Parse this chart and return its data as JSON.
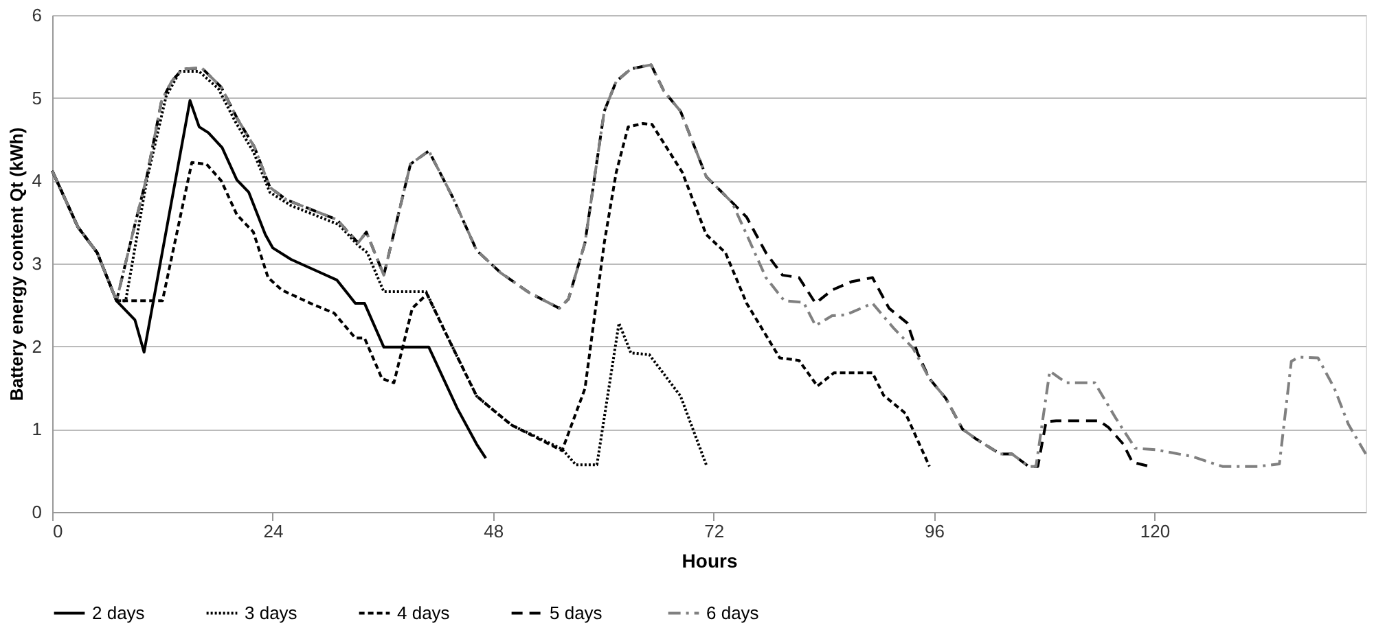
{
  "chart_data": {
    "type": "line",
    "xlabel": "Hours",
    "ylabel": "Battery energy content Qt (kWh)",
    "xlim": [
      0,
      143
    ],
    "xticks": [
      0,
      24,
      48,
      72,
      96,
      120
    ],
    "ylim": [
      0,
      6
    ],
    "yticks": [
      0,
      1,
      2,
      3,
      4,
      5,
      6
    ],
    "grid": "y",
    "legend": "bottom",
    "marker": "none",
    "series": [
      {
        "name": "2 days",
        "color": "#000000",
        "line_style": "solid",
        "x": [
          0,
          2.8,
          4.9,
          7,
          9,
          10,
          15,
          16,
          17,
          18.5,
          20.1,
          21.4,
          23.2,
          24,
          26,
          29.2,
          31,
          33,
          34,
          36.1,
          41,
          44.1,
          46.2,
          47.2
        ],
        "values": [
          4.12,
          3.44,
          3.13,
          2.55,
          2.32,
          1.93,
          4.97,
          4.65,
          4.58,
          4.4,
          4.01,
          3.86,
          3.35,
          3.19,
          3.05,
          2.89,
          2.8,
          2.52,
          2.52,
          1.99,
          1.99,
          1.25,
          0.82,
          0.65
        ]
      },
      {
        "name": "3 days",
        "color": "#000000",
        "line_style": "dotted",
        "x": [
          0,
          2.8,
          4.9,
          7,
          8,
          10.3,
          12.4,
          13.9,
          16,
          18.1,
          19.9,
          21.9,
          23.7,
          26,
          31.2,
          33.3,
          34.3,
          36.1,
          40.7,
          43.1,
          46.2,
          47.8,
          50,
          55.5,
          57,
          59.3,
          61.7,
          63,
          65,
          68.4,
          71.2
        ],
        "values": [
          4.12,
          3.44,
          3.13,
          2.55,
          2.55,
          4.01,
          5.02,
          5.32,
          5.32,
          5.11,
          4.72,
          4.35,
          3.86,
          3.7,
          3.47,
          3.22,
          3.13,
          2.66,
          2.66,
          2.1,
          1.4,
          1.25,
          1.05,
          0.76,
          0.57,
          0.57,
          2.28,
          1.92,
          1.9,
          1.4,
          0.57
        ]
      },
      {
        "name": "4 days",
        "color": "#000000",
        "line_style": "dashed",
        "x": [
          0,
          2.8,
          4.9,
          7,
          12,
          15.2,
          16.8,
          18.4,
          20.1,
          21.9,
          23.5,
          25,
          28.1,
          30.7,
          33,
          34,
          35.9,
          37.2,
          39.2,
          40.8,
          43.1,
          46.2,
          47.8,
          50,
          55.5,
          58,
          60.1,
          61.4,
          62.7,
          64.3,
          65.3,
          68.6,
          71.2,
          73.3,
          75.6,
          79.2,
          81.3,
          83.3,
          85.1,
          89.3,
          90.5,
          92.9,
          95.5
        ],
        "values": [
          4.12,
          3.44,
          3.13,
          2.55,
          2.55,
          4.22,
          4.2,
          4.0,
          3.59,
          3.38,
          2.83,
          2.68,
          2.52,
          2.4,
          2.1,
          2.1,
          1.61,
          1.56,
          2.46,
          2.63,
          2.1,
          1.4,
          1.25,
          1.05,
          0.74,
          1.49,
          3.25,
          4.1,
          4.65,
          4.69,
          4.68,
          4.1,
          3.35,
          3.13,
          2.52,
          1.86,
          1.83,
          1.52,
          1.68,
          1.68,
          1.41,
          1.19,
          0.55
        ]
      },
      {
        "name": "5  days",
        "color": "#000000",
        "line_style": "longdash",
        "x": [
          0,
          2.8,
          4.9,
          7,
          8.8,
          10.3,
          11.9,
          13,
          14.2,
          16.3,
          18.4,
          20.2,
          22,
          23.7,
          25.5,
          31,
          33.3,
          34.2,
          36.1,
          39,
          41,
          43.6,
          46.2,
          48.8,
          51.9,
          55.2,
          56.2,
          58,
          60.1,
          61.4,
          63,
          65.2,
          66.6,
          68.4,
          71.2,
          74,
          75.6,
          77.7,
          79.5,
          81.3,
          83.1,
          84.9,
          87,
          89.3,
          91.1,
          93.1,
          94.2,
          95.5,
          97.3,
          99.1,
          100.6,
          103.2,
          104.5,
          106.3,
          107.3,
          108.2,
          109.3,
          114,
          115,
          116.6,
          117.6,
          119.5
        ],
        "values": [
          4.12,
          3.44,
          3.13,
          2.55,
          3.38,
          4.05,
          4.96,
          5.2,
          5.35,
          5.36,
          5.13,
          4.74,
          4.41,
          3.92,
          3.77,
          3.53,
          3.25,
          3.38,
          2.86,
          4.2,
          4.36,
          3.8,
          3.16,
          2.89,
          2.65,
          2.46,
          2.57,
          3.25,
          4.84,
          5.2,
          5.35,
          5.4,
          5.08,
          4.84,
          4.05,
          3.74,
          3.56,
          3.13,
          2.86,
          2.83,
          2.52,
          2.68,
          2.78,
          2.83,
          2.46,
          2.28,
          1.92,
          1.61,
          1.37,
          1.0,
          0.88,
          0.7,
          0.7,
          0.55,
          0.55,
          1.09,
          1.1,
          1.1,
          1.02,
          0.82,
          0.6,
          0.55
        ]
      },
      {
        "name": "6  days",
        "color": "#808080",
        "line_style": "dashdot",
        "x": [
          0,
          2.8,
          4.9,
          7,
          8.8,
          10.3,
          11.9,
          13,
          14.2,
          16.3,
          18.4,
          20.2,
          22,
          23.7,
          25.5,
          31,
          33.3,
          34.2,
          36.1,
          39,
          41,
          43.6,
          46.2,
          48.8,
          51.9,
          55.2,
          56.2,
          58,
          60.1,
          61.4,
          63,
          65.2,
          66.6,
          68.4,
          71.2,
          74,
          75.6,
          77.7,
          79.7,
          81.8,
          83.1,
          84.9,
          86.4,
          89.3,
          91.6,
          93.7,
          95.5,
          97.3,
          99.1,
          100.6,
          103.2,
          104.5,
          106.3,
          107.1,
          108.6,
          110.4,
          113.5,
          115.8,
          117.9,
          120.2,
          124.1,
          127.4,
          131.3,
          133.6,
          134.9,
          135.7,
          137.8,
          139.6,
          141.1,
          143
        ],
        "values": [
          4.12,
          3.44,
          3.13,
          2.55,
          3.38,
          4.05,
          4.96,
          5.2,
          5.35,
          5.36,
          5.13,
          4.74,
          4.41,
          3.92,
          3.77,
          3.53,
          3.25,
          3.38,
          2.86,
          4.2,
          4.36,
          3.8,
          3.16,
          2.89,
          2.65,
          2.46,
          2.57,
          3.25,
          4.84,
          5.2,
          5.35,
          5.4,
          5.08,
          4.84,
          4.05,
          3.74,
          3.35,
          2.83,
          2.55,
          2.53,
          2.25,
          2.37,
          2.38,
          2.52,
          2.22,
          1.98,
          1.61,
          1.37,
          1.0,
          0.88,
          0.7,
          0.7,
          0.55,
          0.55,
          1.7,
          1.56,
          1.56,
          1.13,
          0.77,
          0.75,
          0.67,
          0.55,
          0.55,
          0.58,
          1.82,
          1.87,
          1.86,
          1.49,
          1.06,
          0.7
        ]
      }
    ]
  }
}
